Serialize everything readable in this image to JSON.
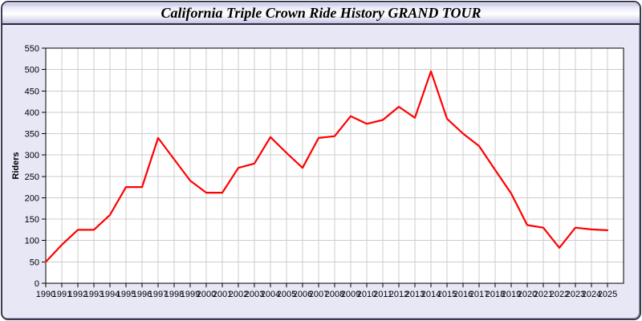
{
  "window": {
    "title": "California Triple Crown Ride History GRAND TOUR"
  },
  "chart_data": {
    "type": "line",
    "title": "California Triple Crown Ride History GRAND TOUR",
    "xlabel": "",
    "ylabel": "Riders",
    "x": [
      1990,
      1991,
      1992,
      1993,
      1994,
      1995,
      1996,
      1997,
      1998,
      1999,
      2000,
      2001,
      2002,
      2003,
      2004,
      2005,
      2006,
      2007,
      2008,
      2009,
      2010,
      2011,
      2012,
      2013,
      2014,
      2015,
      2016,
      2017,
      2018,
      2019,
      2020,
      2021,
      2022,
      2023,
      2024,
      2025
    ],
    "series": [
      {
        "name": "Riders",
        "values": [
          50,
          90,
          125,
          125,
          160,
          225,
          225,
          340,
          290,
          240,
          212,
          212,
          270,
          280,
          342,
          305,
          270,
          340,
          344,
          391,
          373,
          382,
          413,
          387,
          496,
          385,
          350,
          321,
          265,
          210,
          136,
          130,
          83,
          130,
          126,
          124
        ]
      }
    ],
    "ylim": [
      0,
      550
    ],
    "ytick_step": 50,
    "yticks": [
      0,
      50,
      100,
      150,
      200,
      250,
      300,
      350,
      400,
      450,
      500,
      550
    ],
    "grid": true,
    "legend_position": "none",
    "colors": {
      "line": "#ff0000",
      "grid": "#cccccc",
      "axis": "#000000",
      "plot_background": "#ffffff",
      "panel_background": "#e7e7f6",
      "tick_label": "#000000"
    }
  }
}
